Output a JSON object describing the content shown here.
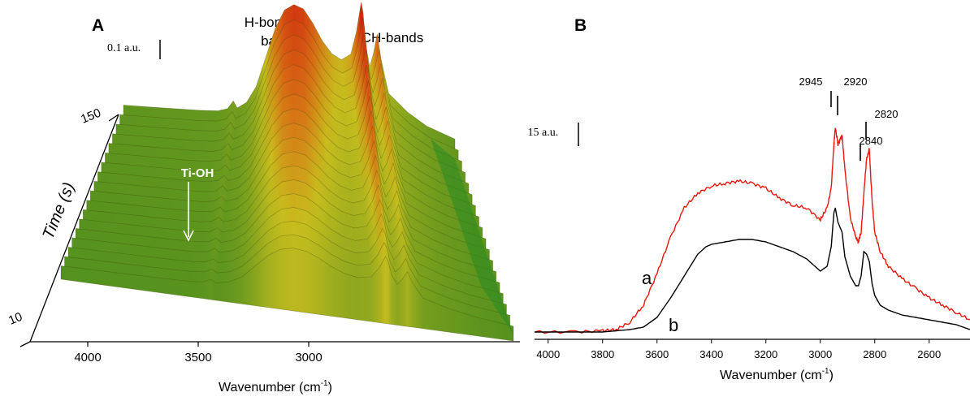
{
  "panelA": {
    "label": "A",
    "scale_bar": "0.1 a.u.",
    "annotations": {
      "h_bonding_line1": "H-bonding",
      "h_bonding_line2": "band",
      "ch_bands": "CH-bands",
      "ti_oh": "Ti-OH"
    },
    "time_axis": {
      "label": "Time (s)",
      "ticks": [
        "150",
        "10"
      ]
    },
    "x_axis": {
      "label": "Wavenumber (cm",
      "label_sup": "-1",
      "label_end": ")",
      "ticks": [
        "4000",
        "3500",
        "3000"
      ]
    }
  },
  "panelB": {
    "label": "B",
    "scale_bar": "0.15 a.u.",
    "peak_labels": [
      "2945",
      "2920",
      "2820",
      "2840"
    ],
    "curve_labels": [
      "a",
      "b"
    ],
    "x_axis": {
      "label": "Wavenumber (cm",
      "label_sup": "-1",
      "label_end": ")",
      "ticks": [
        "4000",
        "3800",
        "3600",
        "3400",
        "3200",
        "3000",
        "2800",
        "2600"
      ]
    }
  },
  "chart_data": [
    {
      "panel": "A",
      "type": "area",
      "description_kind": "3d-waterfall",
      "title": "",
      "xlabel": "Wavenumber (cm-1)",
      "zlabel": "Time (s)",
      "xlim": [
        4200,
        2450
      ],
      "time_range": [
        10,
        150
      ],
      "colors": {
        "low": "#2e8b1a",
        "mid": "#c9c51a",
        "high": "#d01a10"
      },
      "surface": {
        "x": [
          4200,
          4000,
          3800,
          3700,
          3650,
          3620,
          3600,
          3550,
          3500,
          3450,
          3400,
          3350,
          3300,
          3250,
          3200,
          3150,
          3100,
          3050,
          3000,
          2970,
          2945,
          2935,
          2920,
          2900,
          2880,
          2860,
          2840,
          2820,
          2800,
          2700,
          2600,
          2450
        ],
        "y": [
          0.1,
          0.11,
          0.12,
          0.13,
          0.15,
          0.2,
          0.16,
          0.2,
          0.3,
          0.48,
          0.66,
          0.78,
          0.82,
          0.8,
          0.72,
          0.62,
          0.55,
          0.52,
          0.56,
          0.7,
          0.88,
          0.82,
          0.62,
          0.5,
          0.58,
          0.7,
          0.55,
          0.45,
          0.35,
          0.25,
          0.18,
          0.12
        ]
      }
    },
    {
      "panel": "B",
      "type": "line",
      "title": "",
      "xlabel": "Wavenumber (cm-1)",
      "xlim": [
        4050,
        2450
      ],
      "series": [
        {
          "name": "a",
          "color": "#e8180e",
          "x": [
            4050,
            3900,
            3800,
            3750,
            3700,
            3650,
            3600,
            3550,
            3500,
            3450,
            3400,
            3350,
            3300,
            3250,
            3200,
            3150,
            3100,
            3050,
            3000,
            2975,
            2960,
            2950,
            2945,
            2935,
            2920,
            2910,
            2890,
            2870,
            2860,
            2850,
            2840,
            2830,
            2820,
            2810,
            2800,
            2780,
            2750,
            2700,
            2650,
            2600,
            2550,
            2500,
            2450
          ],
          "y": [
            0.01,
            0.01,
            0.015,
            0.02,
            0.05,
            0.12,
            0.25,
            0.4,
            0.52,
            0.58,
            0.61,
            0.62,
            0.63,
            0.62,
            0.6,
            0.56,
            0.53,
            0.52,
            0.47,
            0.52,
            0.6,
            0.78,
            0.85,
            0.78,
            0.82,
            0.68,
            0.48,
            0.4,
            0.38,
            0.42,
            0.58,
            0.72,
            0.76,
            0.55,
            0.42,
            0.34,
            0.28,
            0.23,
            0.19,
            0.15,
            0.12,
            0.09,
            0.06
          ]
        },
        {
          "name": "b",
          "color": "#000000",
          "x": [
            4050,
            3900,
            3800,
            3750,
            3700,
            3650,
            3600,
            3550,
            3500,
            3450,
            3420,
            3400,
            3350,
            3300,
            3250,
            3200,
            3150,
            3100,
            3050,
            3000,
            2975,
            2960,
            2950,
            2945,
            2935,
            2920,
            2910,
            2890,
            2870,
            2860,
            2850,
            2840,
            2830,
            2820,
            2810,
            2800,
            2780,
            2750,
            2700,
            2650,
            2600,
            2550,
            2500,
            2450
          ],
          "y": [
            0.01,
            0.01,
            0.01,
            0.015,
            0.02,
            0.03,
            0.07,
            0.15,
            0.24,
            0.33,
            0.36,
            0.37,
            0.38,
            0.39,
            0.39,
            0.38,
            0.36,
            0.34,
            0.31,
            0.26,
            0.28,
            0.36,
            0.5,
            0.52,
            0.46,
            0.42,
            0.32,
            0.24,
            0.2,
            0.2,
            0.24,
            0.34,
            0.33,
            0.3,
            0.21,
            0.16,
            0.12,
            0.1,
            0.08,
            0.07,
            0.06,
            0.05,
            0.04,
            0.02
          ]
        }
      ]
    }
  ]
}
